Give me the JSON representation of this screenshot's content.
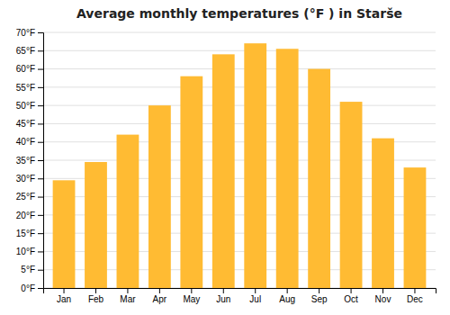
{
  "chart_data": {
    "type": "bar",
    "title": "Average monthly temperatures (°F ) in Starše",
    "categories": [
      "Jan",
      "Feb",
      "Mar",
      "Apr",
      "May",
      "Jun",
      "Jul",
      "Aug",
      "Sep",
      "Oct",
      "Nov",
      "Dec"
    ],
    "values": [
      29.5,
      34.5,
      42.0,
      50.0,
      58.0,
      64.0,
      67.0,
      65.5,
      60.0,
      51.0,
      41.0,
      33.0
    ],
    "color": "#FFBB33",
    "ylim": [
      0,
      70
    ],
    "yticks": [
      {
        "value": 0,
        "label": "0°F"
      },
      {
        "value": 5,
        "label": "5°F"
      },
      {
        "value": 10,
        "label": "10°F"
      },
      {
        "value": 15,
        "label": "15°F"
      },
      {
        "value": 20,
        "label": "20°F"
      },
      {
        "value": 25,
        "label": "25°F"
      },
      {
        "value": 30,
        "label": "30°F"
      },
      {
        "value": 35,
        "label": "35°F"
      },
      {
        "value": 40,
        "label": "40°F"
      },
      {
        "value": 45,
        "label": "45°F"
      },
      {
        "value": 50,
        "label": "50°F"
      },
      {
        "value": 55,
        "label": "55°F"
      },
      {
        "value": 60,
        "label": "60°F"
      },
      {
        "value": 65,
        "label": "65°F"
      },
      {
        "value": 70,
        "label": "70°F"
      }
    ],
    "grid": true
  }
}
